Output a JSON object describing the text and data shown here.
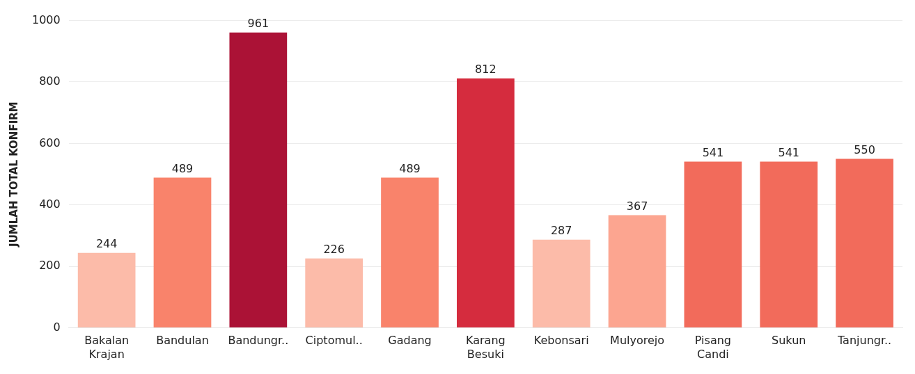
{
  "chart_data": {
    "type": "bar",
    "ylabel": "JUMLAH TOTAL KONFIRM",
    "categories": [
      "Bakalan Krajan",
      "Bandulan",
      "Bandungr..",
      "Ciptomul..",
      "Gadang",
      "Karang Besuki",
      "Kebonsari",
      "Mulyorejo",
      "Pisang Candi",
      "Sukun",
      "Tanjungr.."
    ],
    "values": [
      244,
      489,
      961,
      226,
      489,
      812,
      287,
      367,
      541,
      541,
      550
    ],
    "colors": [
      "#fcbba9",
      "#f9836b",
      "#ab1236",
      "#fcbba9",
      "#f9836b",
      "#d52c3e",
      "#fcbba9",
      "#fca590",
      "#f26b5b",
      "#f26b5b",
      "#f26b5b"
    ],
    "ylim": [
      0,
      1000
    ],
    "yticks": [
      0,
      200,
      400,
      600,
      800,
      1000
    ],
    "grid": "y",
    "data_labels": true
  }
}
